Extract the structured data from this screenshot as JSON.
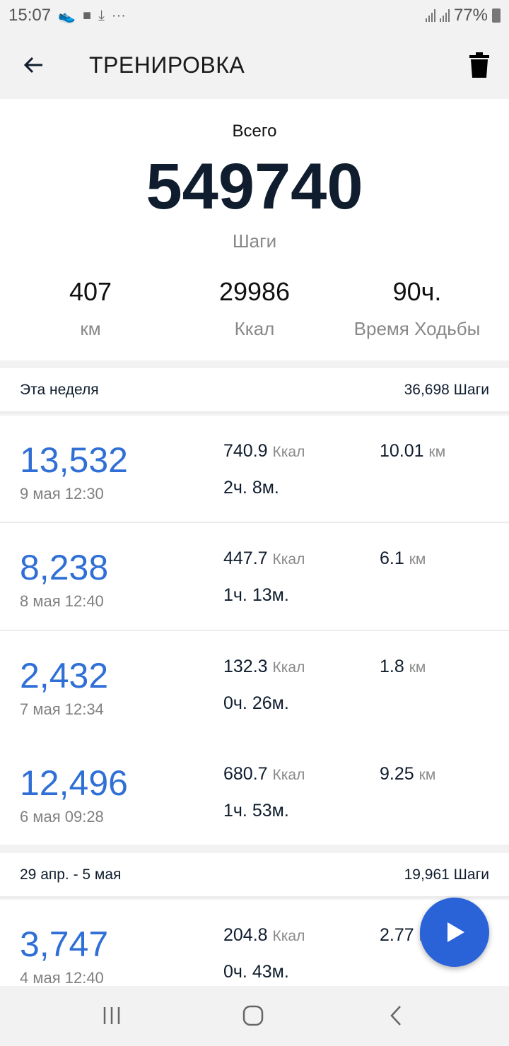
{
  "status_bar": {
    "time": "15:07",
    "battery": "77%",
    "icons": [
      "shoe-icon",
      "message-icon",
      "download-icon",
      "more-icon",
      "signal-icon",
      "signal-icon",
      "battery-icon"
    ]
  },
  "header": {
    "title": "ТРЕНИРОВКА"
  },
  "summary": {
    "label": "Всего",
    "total_steps": "549740",
    "steps_unit": "Шаги",
    "stats": [
      {
        "value": "407",
        "unit": "км"
      },
      {
        "value": "29986",
        "unit": "Ккал"
      },
      {
        "value": "90ч.",
        "unit": "Время Ходьбы"
      }
    ]
  },
  "sections": [
    {
      "title": "Эта неделя",
      "total": "36,698 Шаги",
      "rows": [
        {
          "steps": "13,532",
          "date": "9 мая 12:30",
          "kcal": "740.9",
          "kcal_unit": "Ккал",
          "duration": "2ч. 8м.",
          "distance": "10.01",
          "distance_unit": "км"
        },
        {
          "steps": "8,238",
          "date": "8 мая 12:40",
          "kcal": "447.7",
          "kcal_unit": "Ккал",
          "duration": "1ч. 13м.",
          "distance": "6.1",
          "distance_unit": "км"
        },
        {
          "steps": "2,432",
          "date": "7 мая 12:34",
          "kcal": "132.3",
          "kcal_unit": "Ккал",
          "duration": "0ч. 26м.",
          "distance": "1.8",
          "distance_unit": "км"
        },
        {
          "steps": "12,496",
          "date": "6 мая 09:28",
          "kcal": "680.7",
          "kcal_unit": "Ккал",
          "duration": "1ч. 53м.",
          "distance": "9.25",
          "distance_unit": "км"
        }
      ]
    },
    {
      "title": "29 апр. - 5 мая",
      "total": "19,961 Шаги",
      "rows": [
        {
          "steps": "3,747",
          "date": "4 мая 12:40",
          "kcal": "204.8",
          "kcal_unit": "Ккал",
          "duration": "0ч. 43м.",
          "distance": "2.77",
          "distance_unit": "км"
        }
      ]
    }
  ],
  "colors": {
    "accent": "#2f6fd6",
    "fab": "#2a62d8",
    "text": "#0f1d2e"
  }
}
